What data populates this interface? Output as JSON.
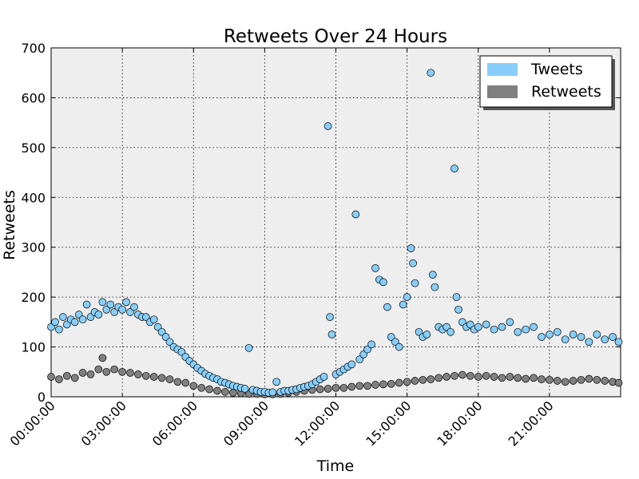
{
  "chart_data": {
    "type": "scatter",
    "title": "Retweets Over 24 Hours",
    "xlabel": "Time",
    "ylabel": "Retweets",
    "xlim": [
      "00:00:00",
      "24:00:00"
    ],
    "ylim": [
      0,
      700
    ],
    "yticks": [
      0,
      100,
      200,
      300,
      400,
      500,
      600,
      700
    ],
    "xticks": [
      "00:00:00",
      "03:00:00",
      "06:00:00",
      "09:00:00",
      "12:00:00",
      "15:00:00",
      "18:00:00",
      "21:00:00"
    ],
    "grid": true,
    "legend_position": "top-right",
    "colors": {
      "tweets": "#87cefa",
      "retweets": "#808080",
      "plot_bg": "#eeeeee"
    },
    "series": [
      {
        "name": "Tweets",
        "color": "#87cefa",
        "points": [
          [
            "00:00:00",
            140
          ],
          [
            "00:10:00",
            150
          ],
          [
            "00:20:00",
            135
          ],
          [
            "00:30:00",
            160
          ],
          [
            "00:40:00",
            145
          ],
          [
            "00:50:00",
            155
          ],
          [
            "01:00:00",
            150
          ],
          [
            "01:10:00",
            165
          ],
          [
            "01:20:00",
            155
          ],
          [
            "01:30:00",
            185
          ],
          [
            "01:40:00",
            160
          ],
          [
            "01:50:00",
            170
          ],
          [
            "02:00:00",
            165
          ],
          [
            "02:10:00",
            190
          ],
          [
            "02:20:00",
            175
          ],
          [
            "02:30:00",
            185
          ],
          [
            "02:40:00",
            170
          ],
          [
            "02:50:00",
            180
          ],
          [
            "03:00:00",
            175
          ],
          [
            "03:10:00",
            190
          ],
          [
            "03:20:00",
            170
          ],
          [
            "03:30:00",
            180
          ],
          [
            "03:40:00",
            165
          ],
          [
            "03:50:00",
            160
          ],
          [
            "04:00:00",
            160
          ],
          [
            "04:10:00",
            150
          ],
          [
            "04:20:00",
            155
          ],
          [
            "04:30:00",
            140
          ],
          [
            "04:40:00",
            130
          ],
          [
            "04:50:00",
            120
          ],
          [
            "05:00:00",
            110
          ],
          [
            "05:10:00",
            100
          ],
          [
            "05:20:00",
            95
          ],
          [
            "05:30:00",
            90
          ],
          [
            "05:40:00",
            80
          ],
          [
            "05:50:00",
            72
          ],
          [
            "06:00:00",
            65
          ],
          [
            "06:10:00",
            58
          ],
          [
            "06:20:00",
            52
          ],
          [
            "06:30:00",
            46
          ],
          [
            "06:40:00",
            42
          ],
          [
            "06:50:00",
            38
          ],
          [
            "07:00:00",
            35
          ],
          [
            "07:10:00",
            30
          ],
          [
            "07:20:00",
            28
          ],
          [
            "07:30:00",
            25
          ],
          [
            "07:40:00",
            22
          ],
          [
            "07:50:00",
            20
          ],
          [
            "08:00:00",
            18
          ],
          [
            "08:10:00",
            16
          ],
          [
            "08:20:00",
            98
          ],
          [
            "08:30:00",
            14
          ],
          [
            "08:40:00",
            12
          ],
          [
            "08:50:00",
            10
          ],
          [
            "09:00:00",
            10
          ],
          [
            "09:10:00",
            8
          ],
          [
            "09:20:00",
            9
          ],
          [
            "09:30:00",
            30
          ],
          [
            "09:40:00",
            10
          ],
          [
            "09:50:00",
            12
          ],
          [
            "10:00:00",
            12
          ],
          [
            "10:10:00",
            14
          ],
          [
            "10:20:00",
            15
          ],
          [
            "10:30:00",
            18
          ],
          [
            "10:40:00",
            20
          ],
          [
            "10:50:00",
            22
          ],
          [
            "11:00:00",
            25
          ],
          [
            "11:10:00",
            30
          ],
          [
            "11:20:00",
            35
          ],
          [
            "11:30:00",
            40
          ],
          [
            "11:40:00",
            543
          ],
          [
            "11:45:00",
            160
          ],
          [
            "11:50:00",
            125
          ],
          [
            "12:00:00",
            45
          ],
          [
            "12:10:00",
            50
          ],
          [
            "12:20:00",
            55
          ],
          [
            "12:30:00",
            60
          ],
          [
            "12:40:00",
            65
          ],
          [
            "12:50:00",
            366
          ],
          [
            "13:00:00",
            75
          ],
          [
            "13:10:00",
            85
          ],
          [
            "13:20:00",
            95
          ],
          [
            "13:30:00",
            105
          ],
          [
            "13:40:00",
            258
          ],
          [
            "13:50:00",
            235
          ],
          [
            "14:00:00",
            230
          ],
          [
            "14:10:00",
            180
          ],
          [
            "14:20:00",
            120
          ],
          [
            "14:30:00",
            110
          ],
          [
            "14:40:00",
            100
          ],
          [
            "14:50:00",
            185
          ],
          [
            "15:00:00",
            200
          ],
          [
            "15:10:00",
            298
          ],
          [
            "15:15:00",
            268
          ],
          [
            "15:20:00",
            228
          ],
          [
            "15:30:00",
            130
          ],
          [
            "15:40:00",
            120
          ],
          [
            "15:50:00",
            125
          ],
          [
            "16:00:00",
            650
          ],
          [
            "16:05:00",
            245
          ],
          [
            "16:10:00",
            220
          ],
          [
            "16:20:00",
            140
          ],
          [
            "16:30:00",
            135
          ],
          [
            "16:40:00",
            140
          ],
          [
            "16:50:00",
            130
          ],
          [
            "17:00:00",
            458
          ],
          [
            "17:05:00",
            200
          ],
          [
            "17:10:00",
            175
          ],
          [
            "17:20:00",
            150
          ],
          [
            "17:30:00",
            140
          ],
          [
            "17:40:00",
            145
          ],
          [
            "17:50:00",
            135
          ],
          [
            "18:00:00",
            140
          ],
          [
            "18:20:00",
            145
          ],
          [
            "18:40:00",
            135
          ],
          [
            "19:00:00",
            140
          ],
          [
            "19:20:00",
            150
          ],
          [
            "19:40:00",
            130
          ],
          [
            "20:00:00",
            135
          ],
          [
            "20:20:00",
            140
          ],
          [
            "20:40:00",
            120
          ],
          [
            "21:00:00",
            125
          ],
          [
            "21:20:00",
            130
          ],
          [
            "21:40:00",
            115
          ],
          [
            "22:00:00",
            125
          ],
          [
            "22:20:00",
            120
          ],
          [
            "22:40:00",
            110
          ],
          [
            "23:00:00",
            125
          ],
          [
            "23:20:00",
            115
          ],
          [
            "23:40:00",
            120
          ],
          [
            "23:55:00",
            110
          ]
        ]
      },
      {
        "name": "Retweets",
        "color": "#808080",
        "points": [
          [
            "00:00:00",
            40
          ],
          [
            "00:20:00",
            35
          ],
          [
            "00:40:00",
            42
          ],
          [
            "01:00:00",
            38
          ],
          [
            "01:20:00",
            48
          ],
          [
            "01:40:00",
            45
          ],
          [
            "02:00:00",
            55
          ],
          [
            "02:10:00",
            78
          ],
          [
            "02:20:00",
            50
          ],
          [
            "02:40:00",
            55
          ],
          [
            "03:00:00",
            50
          ],
          [
            "03:20:00",
            48
          ],
          [
            "03:40:00",
            45
          ],
          [
            "04:00:00",
            42
          ],
          [
            "04:20:00",
            40
          ],
          [
            "04:40:00",
            38
          ],
          [
            "05:00:00",
            35
          ],
          [
            "05:20:00",
            30
          ],
          [
            "05:40:00",
            28
          ],
          [
            "06:00:00",
            22
          ],
          [
            "06:20:00",
            18
          ],
          [
            "06:40:00",
            15
          ],
          [
            "07:00:00",
            12
          ],
          [
            "07:20:00",
            10
          ],
          [
            "07:40:00",
            8
          ],
          [
            "08:00:00",
            7
          ],
          [
            "08:20:00",
            6
          ],
          [
            "08:40:00",
            6
          ],
          [
            "09:00:00",
            5
          ],
          [
            "09:20:00",
            5
          ],
          [
            "09:40:00",
            6
          ],
          [
            "10:00:00",
            8
          ],
          [
            "10:20:00",
            10
          ],
          [
            "10:40:00",
            12
          ],
          [
            "11:00:00",
            14
          ],
          [
            "11:20:00",
            15
          ],
          [
            "11:40:00",
            16
          ],
          [
            "12:00:00",
            18
          ],
          [
            "12:20:00",
            18
          ],
          [
            "12:40:00",
            20
          ],
          [
            "13:00:00",
            22
          ],
          [
            "13:20:00",
            22
          ],
          [
            "13:40:00",
            24
          ],
          [
            "14:00:00",
            25
          ],
          [
            "14:20:00",
            26
          ],
          [
            "14:40:00",
            28
          ],
          [
            "15:00:00",
            30
          ],
          [
            "15:20:00",
            32
          ],
          [
            "15:40:00",
            34
          ],
          [
            "16:00:00",
            35
          ],
          [
            "16:20:00",
            38
          ],
          [
            "16:40:00",
            40
          ],
          [
            "17:00:00",
            42
          ],
          [
            "17:20:00",
            44
          ],
          [
            "17:40:00",
            42
          ],
          [
            "18:00:00",
            40
          ],
          [
            "18:20:00",
            42
          ],
          [
            "18:40:00",
            40
          ],
          [
            "19:00:00",
            38
          ],
          [
            "19:20:00",
            40
          ],
          [
            "19:40:00",
            38
          ],
          [
            "20:00:00",
            36
          ],
          [
            "20:20:00",
            38
          ],
          [
            "20:40:00",
            35
          ],
          [
            "21:00:00",
            34
          ],
          [
            "21:20:00",
            32
          ],
          [
            "21:40:00",
            30
          ],
          [
            "22:00:00",
            32
          ],
          [
            "22:20:00",
            34
          ],
          [
            "22:40:00",
            36
          ],
          [
            "23:00:00",
            34
          ],
          [
            "23:20:00",
            32
          ],
          [
            "23:40:00",
            30
          ],
          [
            "23:55:00",
            28
          ]
        ]
      }
    ]
  }
}
